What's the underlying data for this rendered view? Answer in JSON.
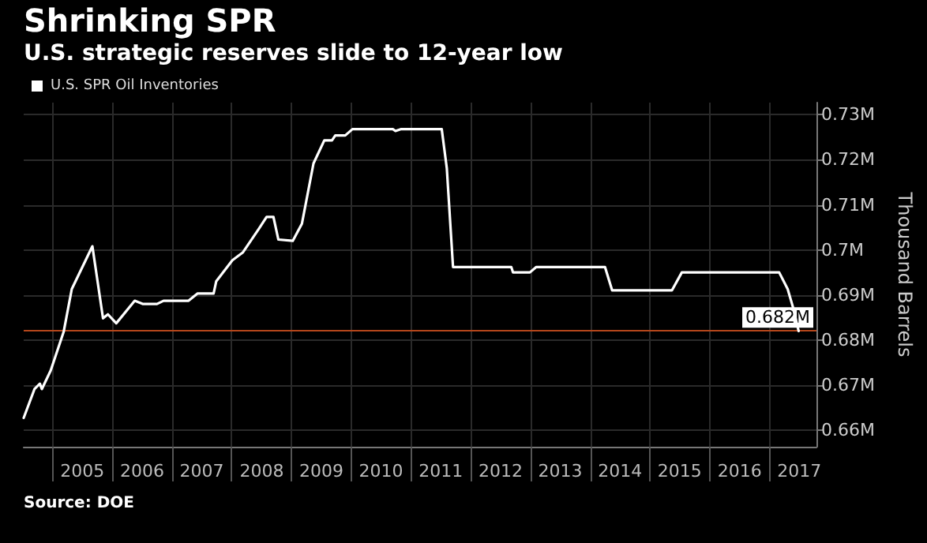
{
  "chart_data": {
    "type": "line",
    "title": "Shrinking SPR",
    "subtitle": "U.S. strategic reserves slide to 12-year low",
    "ylabel": "Thousand Barrels",
    "annotations": [
      "Source: DOE"
    ],
    "series": [
      {
        "name": "U.S. SPR Oil Inventories",
        "color": "#ffffff",
        "x": [
          "2004-07-08",
          "2004-09-12",
          "2004-10-15",
          "2004-10-27",
          "2004-12-20",
          "2005-03-10",
          "2005-04-28",
          "2005-09-01",
          "2005-11-05",
          "2005-12-05",
          "2006-01-25",
          "2006-05-18",
          "2006-07-05",
          "2006-10-01",
          "2006-11-10",
          "2007-04-12",
          "2007-06-05",
          "2007-09-12",
          "2007-09-28",
          "2008-01-05",
          "2008-03-08",
          "2008-06-15",
          "2008-08-01",
          "2008-09-12",
          "2008-10-12",
          "2009-01-08",
          "2009-03-05",
          "2009-05-15",
          "2009-07-20",
          "2009-09-05",
          "2009-09-25",
          "2009-11-25",
          "2010-01-08",
          "2010-09-12",
          "2010-09-28",
          "2010-10-30",
          "2011-07-08",
          "2011-08-08",
          "2011-09-15",
          "2012-09-05",
          "2012-09-16",
          "2012-12-28",
          "2013-02-05",
          "2014-04-01",
          "2014-05-15",
          "2015-05-15",
          "2015-07-15",
          "2017-03-01",
          "2017-04-22",
          "2017-05-25",
          "2017-06-28"
        ],
        "values": [
          0.6627,
          0.6691,
          0.6703,
          0.6691,
          0.6732,
          0.6819,
          0.6913,
          0.7008,
          0.6848,
          0.6857,
          0.6837,
          0.6887,
          0.688,
          0.688,
          0.6887,
          0.6887,
          0.6903,
          0.6903,
          0.693,
          0.6977,
          0.6994,
          0.7047,
          0.7073,
          0.7073,
          0.7023,
          0.702,
          0.7058,
          0.7192,
          0.7243,
          0.7243,
          0.7254,
          0.7254,
          0.7268,
          0.7268,
          0.7264,
          0.7268,
          0.7268,
          0.7181,
          0.6962,
          0.6962,
          0.695,
          0.695,
          0.6962,
          0.6962,
          0.691,
          0.691,
          0.695,
          0.695,
          0.6913,
          0.6872,
          0.682
        ]
      }
    ],
    "xlim": [
      "2004-07-08",
      "2017-10-15"
    ],
    "xticks": [
      {
        "value": "2005-01-01",
        "label": null
      },
      {
        "value": "2005-07-02",
        "label": "2005"
      },
      {
        "value": "2006-01-01",
        "label": null
      },
      {
        "value": "2006-07-02",
        "label": "2006"
      },
      {
        "value": "2007-01-01",
        "label": null
      },
      {
        "value": "2007-07-02",
        "label": "2007"
      },
      {
        "value": "2008-01-01",
        "label": null
      },
      {
        "value": "2008-07-02",
        "label": "2008"
      },
      {
        "value": "2009-01-01",
        "label": null
      },
      {
        "value": "2009-07-02",
        "label": "2009"
      },
      {
        "value": "2010-01-01",
        "label": null
      },
      {
        "value": "2010-07-02",
        "label": "2010"
      },
      {
        "value": "2011-01-01",
        "label": null
      },
      {
        "value": "2011-07-02",
        "label": "2011"
      },
      {
        "value": "2012-01-01",
        "label": null
      },
      {
        "value": "2012-07-02",
        "label": "2012"
      },
      {
        "value": "2013-01-01",
        "label": null
      },
      {
        "value": "2013-07-02",
        "label": "2013"
      },
      {
        "value": "2014-01-01",
        "label": null
      },
      {
        "value": "2014-07-02",
        "label": "2014"
      },
      {
        "value": "2015-01-01",
        "label": null
      },
      {
        "value": "2015-07-02",
        "label": "2015"
      },
      {
        "value": "2016-01-01",
        "label": null
      },
      {
        "value": "2016-07-02",
        "label": "2016"
      },
      {
        "value": "2017-01-01",
        "label": null
      },
      {
        "value": "2017-07-02",
        "label": "2017"
      }
    ],
    "ylim": [
      0.6563,
      0.7327
    ],
    "yticks": [
      {
        "value": 0.66,
        "label": "0.66M"
      },
      {
        "value": 0.67,
        "label": "0.67M"
      },
      {
        "value": 0.68,
        "label": "0.68M"
      },
      {
        "value": 0.69,
        "label": "0.69M"
      },
      {
        "value": 0.7,
        "label": "0.7M"
      },
      {
        "value": 0.71,
        "label": "0.71M"
      },
      {
        "value": 0.72,
        "label": "0.72M"
      },
      {
        "value": 0.73,
        "label": "0.73M"
      }
    ],
    "ref_lines": [
      {
        "axis": "y",
        "value": 0.682,
        "label": "0.682M",
        "color": "#b5471b"
      }
    ],
    "grid": true,
    "legend": "top left",
    "marker": "none",
    "line_style": "solid"
  }
}
